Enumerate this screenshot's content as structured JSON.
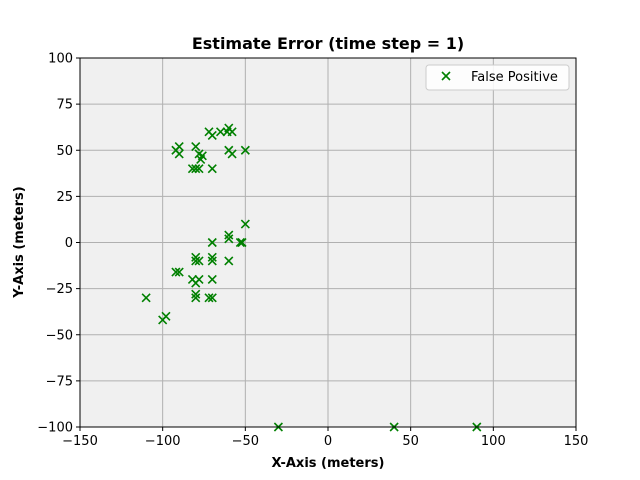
{
  "chart_data": {
    "type": "scatter",
    "title": "Estimate Error (time step = 1)",
    "xlabel": "X-Axis (meters)",
    "ylabel": "Y-Axis (meters)",
    "xlim": [
      -150,
      150
    ],
    "ylim": [
      -100,
      100
    ],
    "xticks": [
      -150,
      -100,
      -50,
      0,
      50,
      100,
      150
    ],
    "yticks": [
      -100,
      -75,
      -50,
      -25,
      0,
      25,
      50,
      75,
      100
    ],
    "xtick_labels": [
      "−150",
      "−100",
      "−50",
      "0",
      "50",
      "100",
      "150"
    ],
    "ytick_labels": [
      "−100",
      "−75",
      "−50",
      "−25",
      "0",
      "25",
      "50",
      "75",
      "100"
    ],
    "grid": true,
    "legend": "top-right",
    "colors": {
      "marker": "#008000",
      "plot_bg": "#f0f0f0",
      "grid": "#b0b0b0"
    },
    "series": [
      {
        "name": "False Positive",
        "marker": "x",
        "points": [
          [
            -92,
            50
          ],
          [
            -90,
            52
          ],
          [
            -90,
            48
          ],
          [
            -80,
            52
          ],
          [
            -78,
            48
          ],
          [
            -76,
            47
          ],
          [
            -77,
            45
          ],
          [
            -72,
            60
          ],
          [
            -70,
            58
          ],
          [
            -65,
            60
          ],
          [
            -60,
            62
          ],
          [
            -58,
            60
          ],
          [
            -61,
            60
          ],
          [
            -60,
            50
          ],
          [
            -58,
            48
          ],
          [
            -50,
            50
          ],
          [
            -82,
            40
          ],
          [
            -80,
            40
          ],
          [
            -78,
            40
          ],
          [
            -70,
            40
          ],
          [
            -50,
            10
          ],
          [
            -60,
            4
          ],
          [
            -60,
            2
          ],
          [
            -53,
            0
          ],
          [
            -52,
            0
          ],
          [
            -70,
            0
          ],
          [
            -80,
            -8
          ],
          [
            -80,
            -10
          ],
          [
            -78,
            -10
          ],
          [
            -70,
            -8
          ],
          [
            -70,
            -10
          ],
          [
            -60,
            -10
          ],
          [
            -92,
            -16
          ],
          [
            -90,
            -16
          ],
          [
            -82,
            -20
          ],
          [
            -80,
            -22
          ],
          [
            -78,
            -20
          ],
          [
            -70,
            -20
          ],
          [
            -80,
            -28
          ],
          [
            -80,
            -30
          ],
          [
            -72,
            -30
          ],
          [
            -70,
            -30
          ],
          [
            -110,
            -30
          ],
          [
            -98,
            -40
          ],
          [
            -100,
            -42
          ],
          [
            -30,
            -100
          ],
          [
            40,
            -100
          ],
          [
            90,
            -100
          ]
        ]
      }
    ]
  }
}
